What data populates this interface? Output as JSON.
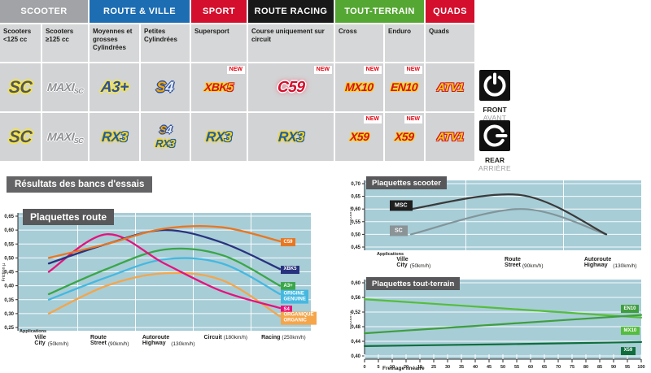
{
  "results_title": "Résultats des bancs d'essais",
  "table": {
    "new_label": "NEW",
    "categories": [
      {
        "label": "SCOOTER",
        "bg": "#a1a3a6",
        "span": 2
      },
      {
        "label": "ROUTE & VILLE",
        "bg": "#1d6db3",
        "span": 2
      },
      {
        "label": "SPORT",
        "bg": "#d40f2d",
        "span": 1
      },
      {
        "label": "ROUTE RACING",
        "bg": "#191919",
        "span": 1
      },
      {
        "label": "TOUT-TERRAIN",
        "bg": "#55a733",
        "span": 2
      },
      {
        "label": "QUADS",
        "bg": "#d40f2d",
        "span": 1
      }
    ],
    "subheaders": [
      "Scooters <125 cc",
      "Scooters ≥125 cc",
      "Moyennes et grosses Cylindrées",
      "Petites Cylindrées",
      "Supersport",
      "Course uniquement sur circuit",
      "Cross",
      "Enduro",
      "Quads"
    ],
    "front_row": [
      {
        "cell": "scooters-lt125",
        "logos": [
          {
            "style": "sc",
            "parts": [
              {
                "t": "SC",
                "k": "a"
              }
            ]
          }
        ]
      },
      {
        "cell": "scooters-ge125",
        "logos": [
          {
            "style": "maxisc",
            "parts": [
              {
                "t": "MAXI",
                "k": "a"
              },
              {
                "t": "SC",
                "k": "b"
              }
            ]
          }
        ]
      },
      {
        "cell": "moyennes-cylindrees",
        "logos": [
          {
            "style": "a3",
            "parts": [
              {
                "t": "A3+",
                "k": "a"
              }
            ]
          }
        ]
      },
      {
        "cell": "petites-cylindrees",
        "logos": [
          {
            "style": "s4",
            "parts": [
              {
                "t": "S",
                "k": "a"
              },
              {
                "t": "4",
                "k": "b"
              }
            ]
          }
        ]
      },
      {
        "cell": "supersport",
        "new": true,
        "logos": [
          {
            "style": "xbk5",
            "parts": [
              {
                "t": "XBK",
                "k": "a"
              },
              {
                "t": "5",
                "k": "b"
              }
            ]
          }
        ]
      },
      {
        "cell": "course-circuit",
        "new": true,
        "logos": [
          {
            "style": "c59",
            "parts": [
              {
                "t": "C59",
                "k": "a"
              }
            ]
          }
        ]
      },
      {
        "cell": "cross",
        "new": true,
        "logos": [
          {
            "style": "mx10",
            "parts": [
              {
                "t": "MX10",
                "k": "a"
              }
            ]
          }
        ]
      },
      {
        "cell": "enduro",
        "new": true,
        "logos": [
          {
            "style": "en10",
            "parts": [
              {
                "t": "EN10",
                "k": "a"
              }
            ]
          }
        ]
      },
      {
        "cell": "quads",
        "logos": [
          {
            "style": "atv1",
            "parts": [
              {
                "t": "ATV1",
                "k": "a"
              }
            ]
          }
        ]
      }
    ],
    "rear_row": [
      {
        "cell": "scooters-lt125",
        "logos": [
          {
            "style": "sc",
            "parts": [
              {
                "t": "SC",
                "k": "a"
              }
            ]
          }
        ]
      },
      {
        "cell": "scooters-ge125",
        "logos": [
          {
            "style": "maxisc",
            "parts": [
              {
                "t": "MAXI",
                "k": "a"
              },
              {
                "t": "SC",
                "k": "b"
              }
            ]
          }
        ]
      },
      {
        "cell": "moyennes-cylindrees",
        "logos": [
          {
            "style": "rx3",
            "parts": [
              {
                "t": "RX",
                "k": "a"
              },
              {
                "t": "3",
                "k": "b"
              }
            ]
          }
        ]
      },
      {
        "cell": "petites-cylindrees",
        "small": true,
        "logos": [
          {
            "style": "s4",
            "parts": [
              {
                "t": "S",
                "k": "a"
              },
              {
                "t": "4",
                "k": "b"
              }
            ]
          },
          {
            "style": "rx3",
            "parts": [
              {
                "t": "RX",
                "k": "a"
              },
              {
                "t": "3",
                "k": "b"
              }
            ]
          }
        ]
      },
      {
        "cell": "supersport",
        "logos": [
          {
            "style": "rx3",
            "parts": [
              {
                "t": "RX",
                "k": "a"
              },
              {
                "t": "3",
                "k": "b"
              }
            ]
          }
        ]
      },
      {
        "cell": "course-circuit",
        "logos": [
          {
            "style": "rx3",
            "parts": [
              {
                "t": "RX",
                "k": "a"
              },
              {
                "t": "3",
                "k": "b"
              }
            ]
          }
        ]
      },
      {
        "cell": "cross",
        "new": true,
        "logos": [
          {
            "style": "x59",
            "parts": [
              {
                "t": "X59",
                "k": "a"
              }
            ]
          }
        ]
      },
      {
        "cell": "enduro",
        "new": true,
        "logos": [
          {
            "style": "x59",
            "parts": [
              {
                "t": "X59",
                "k": "a"
              }
            ]
          }
        ]
      },
      {
        "cell": "quads",
        "logos": [
          {
            "style": "atv1",
            "parts": [
              {
                "t": "ATV1",
                "k": "a"
              }
            ]
          }
        ]
      }
    ],
    "side": {
      "front": {
        "label": "FRONT",
        "sub": "AVANT"
      },
      "rear": {
        "label": "REAR",
        "sub": "ARRIÈRE"
      }
    }
  },
  "chart_data": [
    {
      "type": "line",
      "title": "Plaquettes route",
      "ylabel": "Friction µ",
      "xlabel": "Applications",
      "ylim": [
        0.25,
        0.65
      ],
      "ytick_labels": [
        "0,65",
        "0,60",
        "0,55",
        "0,50",
        "0,45",
        "0,40",
        "0,35",
        "0,30",
        "0,25"
      ],
      "applications_label": "Applications",
      "categories": [
        "Ville / City (50km/h)",
        "Route / Street (90km/h)",
        "Autoroute / Highway (130km/h)",
        "Circuit (180km/h)",
        "Racing (250km/h)"
      ],
      "xlabels": [
        {
          "main": "Ville",
          "sub": "City",
          "speed": "(50km/h)"
        },
        {
          "main": "Route",
          "sub": "Street",
          "speed": "(90km/h)"
        },
        {
          "main": "Autoroute",
          "sub": "Highway",
          "speed": "(130km/h)"
        },
        {
          "main": "Circuit",
          "speed": "(180km/h)"
        },
        {
          "main": "Racing",
          "speed": "(250km/h)"
        }
      ],
      "grid": true,
      "legend_position": "right",
      "series": [
        {
          "name": "C59",
          "color": "#e87722",
          "chip_bg": "#e87722",
          "chip": [
            "C59"
          ],
          "values": [
            0.5,
            0.55,
            0.605,
            0.61,
            0.56
          ]
        },
        {
          "name": "XBK5",
          "color": "#28337e",
          "chip_bg": "#28337e",
          "chip": [
            "XBK5"
          ],
          "values": [
            0.48,
            0.55,
            0.6,
            0.555,
            0.46
          ]
        },
        {
          "name": "A3+",
          "color": "#3aa648",
          "chip_bg": "#3aa648",
          "chip": [
            "A3+"
          ],
          "values": [
            0.37,
            0.46,
            0.53,
            0.51,
            0.4
          ]
        },
        {
          "name": "ORIGINE GENUINE",
          "color": "#45b8e0",
          "chip_bg": "#45b8e0",
          "chip": [
            "ORIGINE",
            "GENUINE"
          ],
          "values": [
            0.35,
            0.43,
            0.495,
            0.48,
            0.37
          ]
        },
        {
          "name": "S4",
          "color": "#e5127d",
          "chip_bg": "#e5127d",
          "chip": [
            "S4"
          ],
          "values": [
            0.45,
            0.585,
            0.48,
            0.38,
            0.32
          ]
        },
        {
          "name": "ORGANIQUE ORGANIC",
          "color": "#f5a54a",
          "chip_bg": "#f5a54a",
          "chip": [
            "ORGANIQUE",
            "ORGANIC"
          ],
          "values": [
            0.3,
            0.4,
            0.445,
            0.42,
            0.29
          ]
        }
      ]
    },
    {
      "type": "line",
      "title": "Plaquettes scooter",
      "ylabel": "Friction µ",
      "xlabel": "Applications",
      "ylim": [
        0.45,
        0.7
      ],
      "ytick_labels": [
        "0,70",
        "0,65",
        "0,60",
        "0,55",
        "0,50",
        "0,45"
      ],
      "applications_label": "Applications",
      "categories": [
        "Ville / City (50km/h)",
        "Route / Street (90km/h)",
        "Autoroute / Highway (130km/h)"
      ],
      "xlabels": [
        {
          "main": "Ville",
          "sub": "City",
          "speed": "(50km/h)"
        },
        {
          "main": "Route",
          "sub": "Street",
          "speed": "(90km/h)"
        },
        {
          "main": "Autoroute",
          "sub": "Highway",
          "speed": "(130km/h)"
        }
      ],
      "grid": true,
      "legend_position": "left",
      "series": [
        {
          "name": "MSC",
          "color": "#3a3a3a",
          "chip_bg": "#1f1f1f",
          "chip": [
            "MSC"
          ],
          "values": [
            0.6,
            0.655,
            0.5
          ]
        },
        {
          "name": "SC",
          "color": "#82959a",
          "chip_bg": "#8a9396",
          "chip": [
            "SC"
          ],
          "values": [
            0.5,
            0.6,
            0.5
          ]
        }
      ]
    },
    {
      "type": "line",
      "title": "Plaquettes tout-terrain",
      "ylabel": "Friction µ",
      "xlabel": "Freinage linéaire",
      "ylim": [
        0.4,
        0.6
      ],
      "xlim": [
        0,
        100
      ],
      "ytick_labels": [
        "0,60",
        "0,56",
        "0,52",
        "0,48",
        "0,44",
        "0,40"
      ],
      "xtick_labels": [
        "0",
        "5",
        "10",
        "20",
        "15",
        "25",
        "30",
        "35",
        "40",
        "45",
        "50",
        "55",
        "60",
        "65",
        "70",
        "75",
        "80",
        "85",
        "90",
        "95",
        "100"
      ],
      "grid": true,
      "legend_position": "right",
      "series": [
        {
          "name": "EN10",
          "color": "#55bd3b",
          "chip_bg": "#3f9e3e",
          "chip": [
            "EN10"
          ],
          "x": [
            0,
            50,
            100
          ],
          "values": [
            0.555,
            0.53,
            0.505
          ]
        },
        {
          "name": "MX10",
          "color": "#3f9e3e",
          "chip_bg": "#55bd3b",
          "chip": [
            "MX10"
          ],
          "x": [
            0,
            50,
            100
          ],
          "values": [
            0.462,
            0.487,
            0.512
          ]
        },
        {
          "name": "X59",
          "color": "#0f6e3c",
          "chip_bg": "#0f6e3c",
          "chip": [
            "X59"
          ],
          "x": [
            0,
            50,
            100
          ],
          "values": [
            0.427,
            0.432,
            0.438
          ]
        }
      ]
    }
  ]
}
